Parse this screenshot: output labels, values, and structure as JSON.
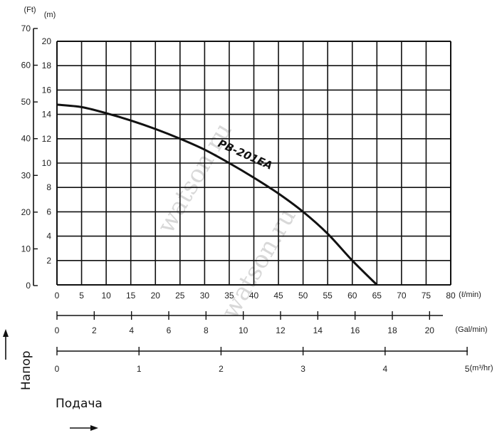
{
  "chart_data": {
    "type": "line",
    "series": [
      {
        "name": "PB-201EA",
        "x": [
          0,
          5,
          10,
          15,
          20,
          25,
          30,
          35,
          40,
          45,
          50,
          55,
          60,
          65
        ],
        "y": [
          14.8,
          14.6,
          14.1,
          13.5,
          12.8,
          12.0,
          11.1,
          10.0,
          8.8,
          7.5,
          6.0,
          4.2,
          2.0,
          0
        ]
      }
    ],
    "xlim": [
      0,
      80
    ],
    "ylim": [
      0,
      20
    ],
    "x_ticks": [
      "0",
      "5",
      "10",
      "15",
      "20",
      "25",
      "30",
      "35",
      "40",
      "45",
      "50",
      "55",
      "60",
      "65",
      "70",
      "75",
      "80"
    ],
    "x_unit": "(ℓ/min)",
    "y_ticks_m": [
      "2",
      "4",
      "6",
      "8",
      "10",
      "12",
      "14",
      "16",
      "18",
      "20"
    ],
    "y_unit_m": "(m)",
    "y_ticks_ft": [
      "0",
      "10",
      "20",
      "30",
      "40",
      "50",
      "60",
      "70"
    ],
    "y_unit_ft": "(Ft)",
    "gal_ticks": [
      "0",
      "2",
      "4",
      "6",
      "8",
      "10",
      "12",
      "14",
      "16",
      "18",
      "20"
    ],
    "gal_unit": "(Gal/min)",
    "m3_ticks": [
      "0",
      "1",
      "2",
      "3",
      "4",
      "5"
    ],
    "m3_unit": "(m³/hr)",
    "grid": true
  },
  "labels": {
    "head": "Напор",
    "flow": "Подача"
  },
  "watermark": "watson.ru"
}
